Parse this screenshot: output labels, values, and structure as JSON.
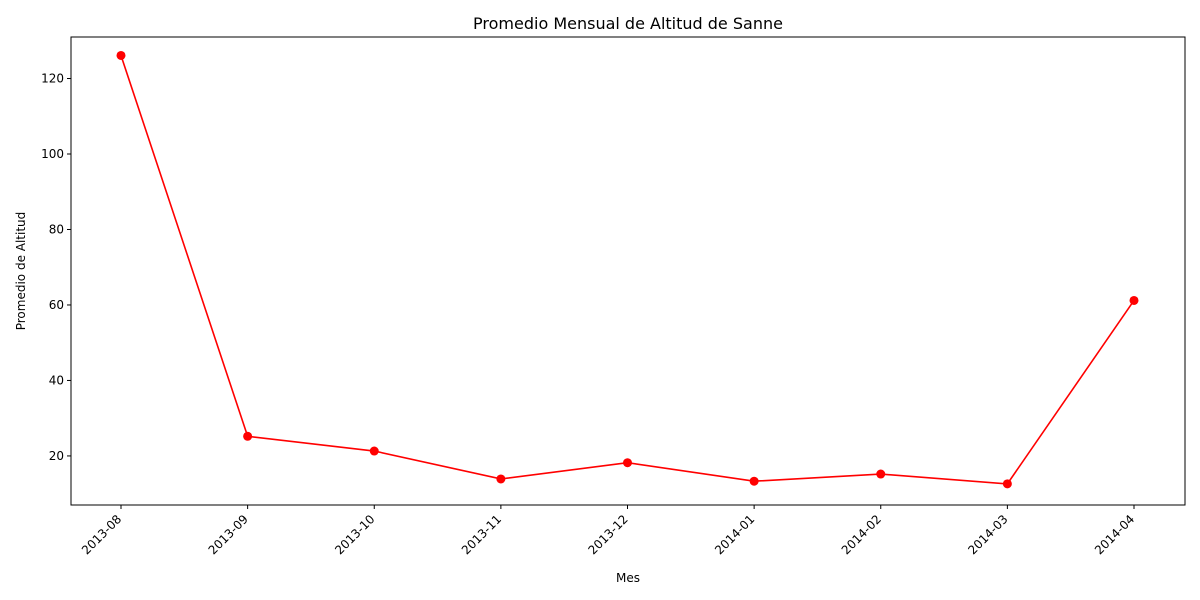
{
  "chart_data": {
    "type": "line",
    "title": "Promedio Mensual de Altitud de Sanne",
    "xlabel": "Mes",
    "ylabel": "Promedio de Altitud",
    "categories": [
      "2013-08",
      "2013-09",
      "2013-10",
      "2013-11",
      "2013-12",
      "2014-01",
      "2014-02",
      "2014-03",
      "2014-04"
    ],
    "series": [
      {
        "values": [
          126.1,
          25.2,
          21.3,
          13.9,
          18.2,
          13.3,
          15.2,
          12.6,
          61.2
        ],
        "color": "#ff0000"
      }
    ],
    "ylim": [
      7,
      131
    ],
    "yticks": [
      20,
      40,
      60,
      80,
      100,
      120
    ],
    "grid": false,
    "legend": "none"
  }
}
